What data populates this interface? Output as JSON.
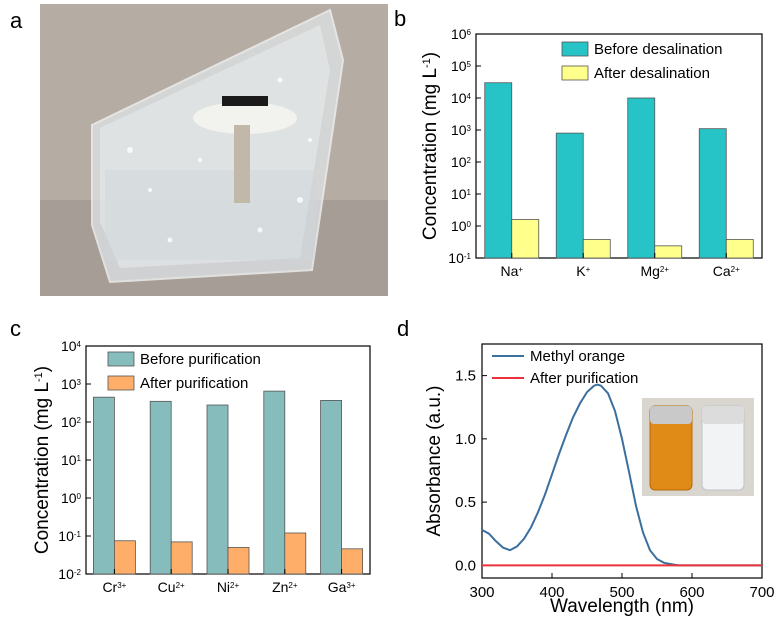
{
  "panels": {
    "a": {
      "letter": "a"
    },
    "b": {
      "letter": "b"
    },
    "c": {
      "letter": "c"
    },
    "d": {
      "letter": "d"
    }
  },
  "colors": {
    "teal": "#26c4c6",
    "yellow": "#ffff8c",
    "grey_teal": "#86bcbc",
    "orange": "#ffae6a",
    "blue_line": "#3b6f9e",
    "red_line": "#e8333a",
    "photo_bg": "#aea69d",
    "vial_orange": "#e08a17"
  },
  "chart_data": [
    {
      "panel": "b",
      "type": "bar",
      "scale": "log",
      "ylabel_main": "Concentration (mg L",
      "ylabel_sup": "-1",
      "ylabel_close": ")",
      "ylim": [
        0.1,
        1000000
      ],
      "categories": [
        {
          "base": "Na",
          "sup": "+"
        },
        {
          "base": "K",
          "sup": "+"
        },
        {
          "base": "Mg",
          "sup": "2+"
        },
        {
          "base": "Ca",
          "sup": "2+"
        }
      ],
      "yticks": [
        {
          "base": "10",
          "sup": "-1",
          "value": 0.1
        },
        {
          "base": "10",
          "sup": "0",
          "value": 1
        },
        {
          "base": "10",
          "sup": "1",
          "value": 10
        },
        {
          "base": "10",
          "sup": "2",
          "value": 100
        },
        {
          "base": "10",
          "sup": "3",
          "value": 1000
        },
        {
          "base": "10",
          "sup": "4",
          "value": 10000
        },
        {
          "base": "10",
          "sup": "5",
          "value": 100000
        },
        {
          "base": "10",
          "sup": "6",
          "value": 1000000
        }
      ],
      "series": [
        {
          "name": "Before desalination",
          "color": "#26c4c6",
          "values": [
            30000,
            800,
            10000,
            1100
          ]
        },
        {
          "name": "After desalination",
          "color": "#ffff8c",
          "values": [
            1.6,
            0.38,
            0.24,
            0.38
          ]
        }
      ],
      "legend_position": "top-right"
    },
    {
      "panel": "c",
      "type": "bar",
      "scale": "log",
      "ylabel_main": "Concentration (mg L",
      "ylabel_sup": "-1",
      "ylabel_close": ")",
      "ylim": [
        0.01,
        10000
      ],
      "categories": [
        {
          "base": "Cr",
          "sup": "3+"
        },
        {
          "base": "Cu",
          "sup": "2+"
        },
        {
          "base": "Ni",
          "sup": "2+"
        },
        {
          "base": "Zn",
          "sup": "2+"
        },
        {
          "base": "Ga",
          "sup": "3+"
        }
      ],
      "yticks": [
        {
          "base": "10",
          "sup": "-2",
          "value": 0.01
        },
        {
          "base": "10",
          "sup": "-1",
          "value": 0.1
        },
        {
          "base": "10",
          "sup": "0",
          "value": 1
        },
        {
          "base": "10",
          "sup": "1",
          "value": 10
        },
        {
          "base": "10",
          "sup": "2",
          "value": 100
        },
        {
          "base": "10",
          "sup": "3",
          "value": 1000
        },
        {
          "base": "10",
          "sup": "4",
          "value": 10000
        }
      ],
      "series": [
        {
          "name": "Before purification",
          "color": "#86bcbc",
          "values": [
            450,
            350,
            280,
            650,
            370
          ]
        },
        {
          "name": "After purification",
          "color": "#ffae6a",
          "values": [
            0.075,
            0.07,
            0.05,
            0.12,
            0.046
          ]
        }
      ],
      "legend_position": "top-left"
    },
    {
      "panel": "d",
      "type": "line",
      "xlabel": "Wavelength (nm)",
      "ylabel": "Absorbance (a.u.)",
      "xlim": [
        300,
        700
      ],
      "ylim": [
        -0.1,
        1.75
      ],
      "xticks": [
        "300",
        "400",
        "500",
        "600",
        "700"
      ],
      "yticks": [
        "0.0",
        "0.5",
        "1.0",
        "1.5"
      ],
      "series": [
        {
          "name": "Methyl orange",
          "color": "#3b6f9e",
          "x": [
            300,
            310,
            320,
            330,
            340,
            350,
            360,
            370,
            380,
            390,
            400,
            410,
            420,
            430,
            440,
            450,
            460,
            465,
            470,
            480,
            490,
            500,
            510,
            520,
            530,
            540,
            550,
            560,
            570,
            580,
            590,
            600
          ],
          "y": [
            0.28,
            0.25,
            0.19,
            0.14,
            0.12,
            0.15,
            0.21,
            0.3,
            0.42,
            0.56,
            0.72,
            0.88,
            1.03,
            1.17,
            1.28,
            1.37,
            1.42,
            1.43,
            1.42,
            1.36,
            1.22,
            1.0,
            0.74,
            0.47,
            0.26,
            0.12,
            0.05,
            0.02,
            0.01,
            0.0,
            0.0,
            0.0
          ]
        },
        {
          "name": "After purification",
          "color": "#e8333a",
          "x": [
            300,
            700
          ],
          "y": [
            0.0,
            0.0
          ]
        }
      ],
      "legend_position": "top-left"
    }
  ]
}
